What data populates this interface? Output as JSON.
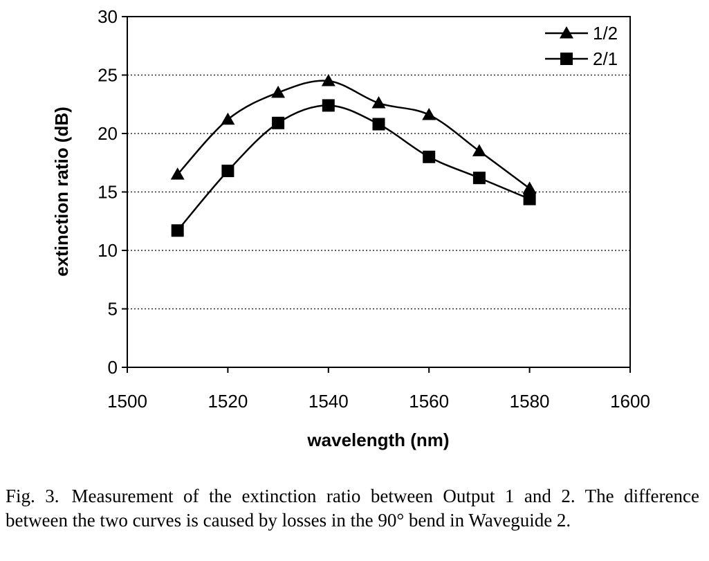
{
  "chart_data": {
    "type": "line",
    "xlabel": "wavelength (nm)",
    "ylabel": "extinction ratio (dB)",
    "xlim": [
      1500,
      1600
    ],
    "ylim": [
      0,
      30
    ],
    "xticks": [
      1500,
      1520,
      1540,
      1560,
      1580,
      1600
    ],
    "yticks": [
      0,
      5,
      10,
      15,
      20,
      25,
      30
    ],
    "grid": "horizontal dotted",
    "legend_position": "top-right",
    "series": [
      {
        "name": "1/2",
        "marker": "triangle",
        "x": [
          1510,
          1520,
          1530,
          1540,
          1550,
          1560,
          1570,
          1580
        ],
        "values": [
          16.5,
          21.2,
          23.5,
          24.5,
          22.6,
          21.6,
          18.5,
          15.3
        ]
      },
      {
        "name": "2/1",
        "marker": "square",
        "x": [
          1510,
          1520,
          1530,
          1540,
          1550,
          1560,
          1570,
          1580
        ],
        "values": [
          11.7,
          16.8,
          20.9,
          22.4,
          20.8,
          18.0,
          16.2,
          14.4
        ]
      }
    ]
  },
  "caption": {
    "label": "Fig. 3.",
    "text": "Measurement of the extinction ratio between Output 1 and 2. The difference between the two curves is caused by losses in the 90° bend in Waveguide 2."
  }
}
